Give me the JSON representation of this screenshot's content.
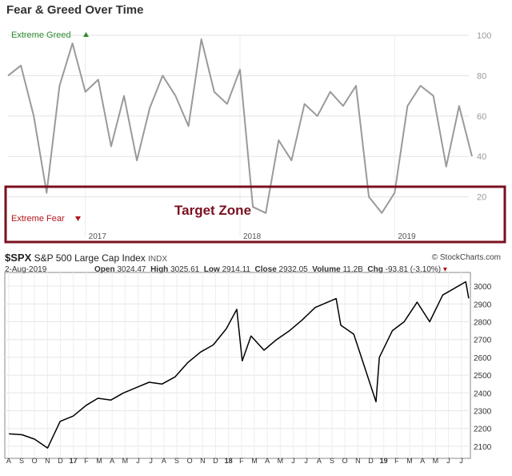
{
  "header": {
    "title": "Fear & Greed Over Time"
  },
  "fear_greed": {
    "extreme_greed_label": "Extreme Greed",
    "extreme_fear_label": "Extreme Fear",
    "target_zone_label": "Target Zone",
    "greed_color": "#2e8b2e",
    "fear_color": "#b3141b",
    "zone_color": "#7a1020"
  },
  "spx_header": {
    "symbol": "$SPX",
    "name": "S&P 500 Large Cap Index",
    "exchange": "INDX",
    "credit": "© StockCharts.com",
    "date": "2-Aug-2019",
    "open_label": "Open",
    "open": "3024.47",
    "high_label": "High",
    "high": "3025.61",
    "low_label": "Low",
    "low": "2914.11",
    "close_label": "Close",
    "close": "2932.05",
    "volume_label": "Volume",
    "volume": "11.2B",
    "chg_label": "Chg",
    "chg": "-93.81 (-3.10%)"
  },
  "chart_data": [
    {
      "type": "line",
      "title": "Fear & Greed Over Time",
      "ylim": [
        0,
        100
      ],
      "y_ticks": [
        20,
        40,
        60,
        80,
        100
      ],
      "x_period": [
        "2016-07",
        "2019-07"
      ],
      "x_tick_labels": [
        {
          "label": "2017",
          "date": "2017-01"
        },
        {
          "label": "2018",
          "date": "2018-01"
        },
        {
          "label": "2019",
          "date": "2019-01"
        }
      ],
      "grid": true,
      "annotations": [
        "Extreme Greed",
        "Extreme Fear",
        "Target Zone"
      ],
      "target_zone": [
        0,
        25
      ],
      "series": [
        {
          "color": "#9a9a9a",
          "x": [
            "2016-07",
            "2016-08",
            "2016-09",
            "2016-10",
            "2016-11",
            "2016-12",
            "2017-01",
            "2017-02",
            "2017-03",
            "2017-04",
            "2017-05",
            "2017-06",
            "2017-07",
            "2017-08",
            "2017-09",
            "2017-10",
            "2017-11",
            "2017-12",
            "2018-01",
            "2018-02",
            "2018-03",
            "2018-04",
            "2018-05",
            "2018-06",
            "2018-07",
            "2018-08",
            "2018-09",
            "2018-10",
            "2018-11",
            "2018-12",
            "2019-01",
            "2019-02",
            "2019-03",
            "2019-04",
            "2019-05",
            "2019-06",
            "2019-07"
          ],
          "values": [
            80,
            85,
            60,
            22,
            75,
            96,
            72,
            78,
            45,
            70,
            38,
            64,
            80,
            70,
            55,
            98,
            72,
            66,
            83,
            15,
            12,
            48,
            38,
            66,
            60,
            72,
            65,
            75,
            20,
            12,
            22,
            65,
            75,
            70,
            35,
            65,
            40
          ]
        }
      ]
    },
    {
      "type": "line",
      "title": "$SPX S&P 500 Large Cap Index",
      "ylim": [
        2050,
        3050
      ],
      "y_ticks": [
        2100,
        2200,
        2300,
        2400,
        2500,
        2600,
        2700,
        2800,
        2900,
        3000
      ],
      "x_tick_labels": [
        "A",
        "S",
        "O",
        "N",
        "D",
        "17",
        "F",
        "M",
        "A",
        "M",
        "J",
        "J",
        "A",
        "S",
        "O",
        "N",
        "D",
        "18",
        "F",
        "M",
        "A",
        "M",
        "J",
        "J",
        "A",
        "S",
        "O",
        "N",
        "D",
        "19",
        "F",
        "M",
        "A",
        "M",
        "J",
        "J"
      ],
      "series": [
        {
          "name": "$SPX",
          "color": "#000000",
          "x": [
            "2016-08-01",
            "2016-09-01",
            "2016-10-01",
            "2016-11-01",
            "2016-12-01",
            "2017-01-01",
            "2017-02-01",
            "2017-03-01",
            "2017-04-01",
            "2017-05-01",
            "2017-06-01",
            "2017-07-01",
            "2017-08-01",
            "2017-09-01",
            "2017-10-01",
            "2017-11-01",
            "2017-12-01",
            "2018-01-01",
            "2018-01-26",
            "2018-02-08",
            "2018-03-01",
            "2018-04-01",
            "2018-05-01",
            "2018-06-01",
            "2018-07-01",
            "2018-08-01",
            "2018-09-20",
            "2018-10-01",
            "2018-11-01",
            "2018-12-24",
            "2019-01-01",
            "2019-02-01",
            "2019-03-01",
            "2019-04-01",
            "2019-05-01",
            "2019-06-01",
            "2019-07-26",
            "2019-08-02"
          ],
          "values": [
            2170,
            2165,
            2140,
            2090,
            2240,
            2270,
            2330,
            2370,
            2360,
            2400,
            2430,
            2460,
            2450,
            2490,
            2570,
            2630,
            2670,
            2760,
            2870,
            2580,
            2720,
            2640,
            2700,
            2750,
            2810,
            2880,
            2930,
            2780,
            2730,
            2350,
            2600,
            2750,
            2800,
            2910,
            2800,
            2950,
            3025,
            2932
          ]
        }
      ]
    }
  ]
}
